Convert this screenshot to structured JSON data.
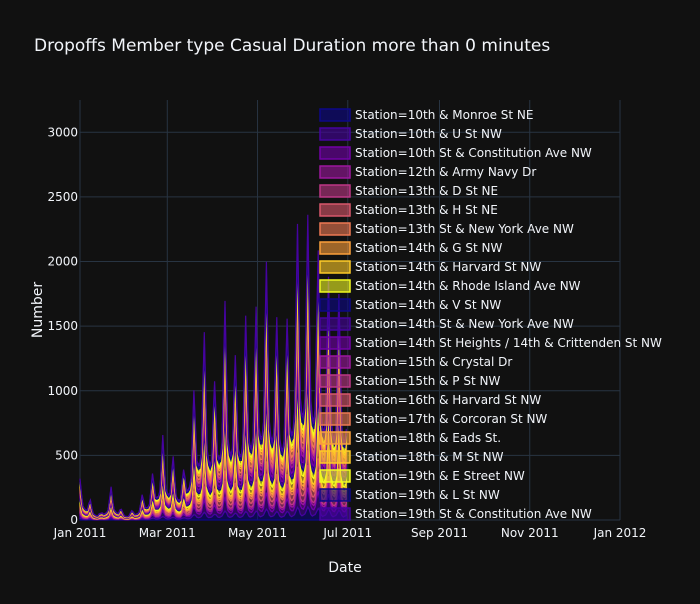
{
  "chart_data": {
    "type": "area",
    "title": "Dropoffs Member type Casual Duration more than 0 minutes",
    "xlabel": "Date",
    "ylabel": "Number",
    "x_range": [
      "2011-01-01",
      "2012-01-01"
    ],
    "ylim": [
      0,
      3250
    ],
    "data_start": "2011-01-01",
    "data_end": "2011-06-30",
    "x_tick_labels": [
      "Jan 2011",
      "Mar 2011",
      "May 2011",
      "Jul 2011",
      "Sep 2011",
      "Nov 2011",
      "Jan 2012"
    ],
    "y_ticks": [
      0,
      500,
      1000,
      1500,
      2000,
      2500,
      3000
    ],
    "grid": true,
    "legend_position": "right",
    "stack_top_peaks": [
      {
        "date": "2011-01-01",
        "value": 310
      },
      {
        "date": "2011-01-08",
        "value": 150
      },
      {
        "date": "2011-01-15",
        "value": 50
      },
      {
        "date": "2011-01-22",
        "value": 250
      },
      {
        "date": "2011-01-29",
        "value": 80
      },
      {
        "date": "2011-02-05",
        "value": 70
      },
      {
        "date": "2011-02-12",
        "value": 190
      },
      {
        "date": "2011-02-19",
        "value": 350
      },
      {
        "date": "2011-02-26",
        "value": 640
      },
      {
        "date": "2011-03-05",
        "value": 480
      },
      {
        "date": "2011-03-12",
        "value": 380
      },
      {
        "date": "2011-03-19",
        "value": 980
      },
      {
        "date": "2011-03-26",
        "value": 1420
      },
      {
        "date": "2011-04-02",
        "value": 1050
      },
      {
        "date": "2011-04-09",
        "value": 1660
      },
      {
        "date": "2011-04-16",
        "value": 1250
      },
      {
        "date": "2011-04-23",
        "value": 1550
      },
      {
        "date": "2011-04-30",
        "value": 1620
      },
      {
        "date": "2011-05-07",
        "value": 1960
      },
      {
        "date": "2011-05-14",
        "value": 1540
      },
      {
        "date": "2011-05-21",
        "value": 1530
      },
      {
        "date": "2011-05-28",
        "value": 2250
      },
      {
        "date": "2011-06-04",
        "value": 2320
      },
      {
        "date": "2011-06-11",
        "value": 2050
      },
      {
        "date": "2011-06-18",
        "value": 1850
      },
      {
        "date": "2011-06-25",
        "value": 1720
      }
    ],
    "series": [
      {
        "name": "Station=10th & Monroe St NE",
        "color": "#0d0887"
      },
      {
        "name": "Station=10th & U St NW",
        "color": "#46039f"
      },
      {
        "name": "Station=10th St & Constitution Ave NW",
        "color": "#7201a8"
      },
      {
        "name": "Station=12th & Army Navy Dr",
        "color": "#9c179e"
      },
      {
        "name": "Station=13th & D St NE",
        "color": "#bd3786"
      },
      {
        "name": "Station=13th & H St NE",
        "color": "#d8576b"
      },
      {
        "name": "Station=13th St & New York Ave NW",
        "color": "#ed7953"
      },
      {
        "name": "Station=14th & G St NW",
        "color": "#fb9f3a"
      },
      {
        "name": "Station=14th & Harvard St NW",
        "color": "#fdca26"
      },
      {
        "name": "Station=14th & Rhode Island Ave NW",
        "color": "#f0f921"
      },
      {
        "name": "Station=14th & V St NW",
        "color": "#0d0887"
      },
      {
        "name": "Station=14th St & New York Ave NW",
        "color": "#46039f"
      },
      {
        "name": "Station=14th St Heights / 14th & Crittenden St NW",
        "color": "#7201a8"
      },
      {
        "name": "Station=15th & Crystal Dr",
        "color": "#9c179e"
      },
      {
        "name": "Station=15th & P St NW",
        "color": "#bd3786"
      },
      {
        "name": "Station=16th & Harvard St NW",
        "color": "#d8576b"
      },
      {
        "name": "Station=17th & Corcoran St NW",
        "color": "#ed7953"
      },
      {
        "name": "Station=18th & Eads St.",
        "color": "#fb9f3a"
      },
      {
        "name": "Station=18th & M St NW",
        "color": "#fdca26"
      },
      {
        "name": "Station=19th & E Street NW",
        "color": "#f0f921"
      },
      {
        "name": "Station=19th & L St NW",
        "color": "#0d0887"
      },
      {
        "name": "Station=19th St & Constitution Ave NW",
        "color": "#46039f"
      }
    ]
  }
}
